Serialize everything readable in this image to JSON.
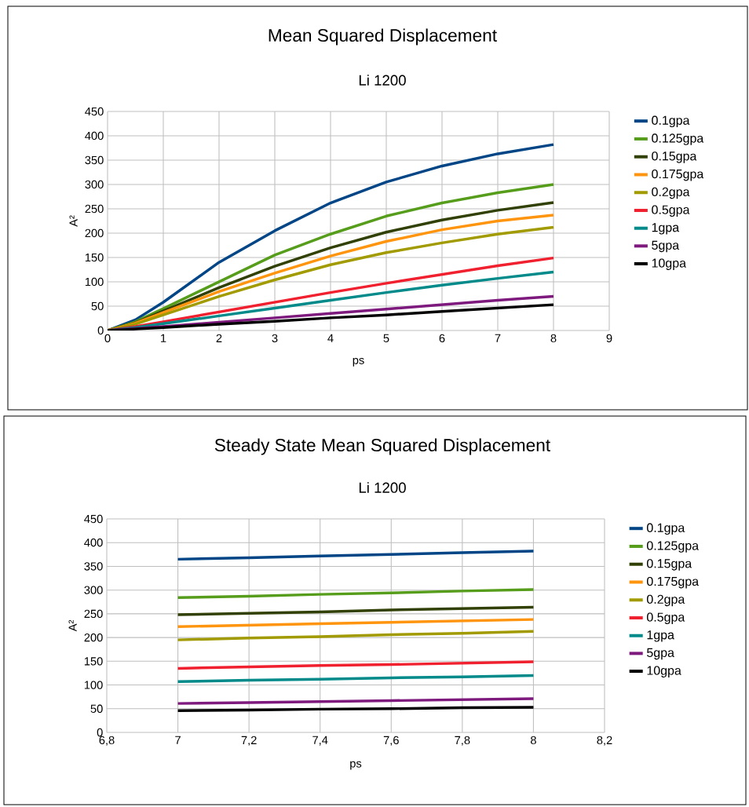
{
  "chart_data": [
    {
      "type": "line",
      "title": "Mean Squared Displacement",
      "subtitle": "Li 1200",
      "xlabel": "ps",
      "ylabel": "A²",
      "x": [
        0,
        0.5,
        1,
        2,
        3,
        4,
        5,
        6,
        7,
        8
      ],
      "xlim": [
        0,
        9
      ],
      "xticks": [
        0,
        1,
        2,
        3,
        4,
        5,
        6,
        7,
        8,
        9
      ],
      "ylim": [
        0,
        450
      ],
      "yticks": [
        0,
        50,
        100,
        150,
        200,
        250,
        300,
        350,
        400,
        450
      ],
      "grid": true,
      "legend": "right",
      "series": [
        {
          "name": "0.1gpa",
          "color": "#004586",
          "values": [
            0,
            22,
            58,
            140,
            205,
            262,
            305,
            338,
            363,
            382
          ]
        },
        {
          "name": "0.125gpa",
          "color": "#579d1c",
          "values": [
            0,
            18,
            45,
            100,
            155,
            198,
            235,
            262,
            283,
            300
          ]
        },
        {
          "name": "0.15gpa",
          "color": "#314004",
          "values": [
            0,
            16,
            40,
            88,
            132,
            170,
            202,
            227,
            247,
            263
          ]
        },
        {
          "name": "0.175gpa",
          "color": "#ff950e",
          "values": [
            0,
            15,
            37,
            80,
            118,
            153,
            183,
            207,
            225,
            237
          ]
        },
        {
          "name": "0.2gpa",
          "color": "#a29b00",
          "values": [
            0,
            13,
            32,
            70,
            104,
            135,
            160,
            180,
            198,
            212
          ]
        },
        {
          "name": "0.5gpa",
          "color": "#f0202f",
          "values": [
            0,
            8,
            18,
            38,
            58,
            78,
            97,
            115,
            133,
            149
          ]
        },
        {
          "name": "1gpa",
          "color": "#008a8a",
          "values": [
            0,
            6,
            14,
            30,
            46,
            62,
            78,
            93,
            107,
            120
          ]
        },
        {
          "name": "5gpa",
          "color": "#7e1a7e",
          "values": [
            0,
            4,
            8,
            17,
            26,
            35,
            44,
            53,
            62,
            70
          ]
        },
        {
          "name": "10gpa",
          "color": "#000000",
          "values": [
            0,
            3,
            6,
            13,
            19,
            26,
            32,
            39,
            46,
            53
          ]
        }
      ]
    },
    {
      "type": "line",
      "title": "Steady State Mean Squared Displacement",
      "subtitle": "Li 1200",
      "xlabel": "ps",
      "ylabel": "A²",
      "x": [
        7,
        7.2,
        7.4,
        7.6,
        7.8,
        8
      ],
      "xlim": [
        6.8,
        8.2
      ],
      "xticks": [
        {
          "value": 6.8,
          "label": "6,8"
        },
        7,
        {
          "value": 7.2,
          "label": "7,2"
        },
        {
          "value": 7.4,
          "label": "7,4"
        },
        {
          "value": 7.6,
          "label": "7,6"
        },
        {
          "value": 7.8,
          "label": "7,8"
        },
        8,
        {
          "value": 8.2,
          "label": "8,2"
        }
      ],
      "ylim": [
        0,
        450
      ],
      "yticks": [
        0,
        50,
        100,
        150,
        200,
        250,
        300,
        350,
        400,
        450
      ],
      "grid": true,
      "legend": "right",
      "series": [
        {
          "name": "0.1gpa",
          "color": "#004586",
          "values": [
            365,
            368,
            372,
            375,
            379,
            382
          ]
        },
        {
          "name": "0.125gpa",
          "color": "#579d1c",
          "values": [
            284,
            287,
            291,
            294,
            298,
            301
          ]
        },
        {
          "name": "0.15gpa",
          "color": "#314004",
          "values": [
            248,
            251,
            254,
            258,
            261,
            264
          ]
        },
        {
          "name": "0.175gpa",
          "color": "#ff950e",
          "values": [
            223,
            226,
            229,
            232,
            235,
            238
          ]
        },
        {
          "name": "0.2gpa",
          "color": "#a29b00",
          "values": [
            195,
            199,
            202,
            206,
            209,
            213
          ]
        },
        {
          "name": "0.5gpa",
          "color": "#f0202f",
          "values": [
            135,
            138,
            141,
            143,
            146,
            149
          ]
        },
        {
          "name": "1gpa",
          "color": "#008a8a",
          "values": [
            107,
            110,
            112,
            115,
            117,
            120
          ]
        },
        {
          "name": "5gpa",
          "color": "#7e1a7e",
          "values": [
            61,
            63,
            65,
            67,
            69,
            71
          ]
        },
        {
          "name": "10gpa",
          "color": "#000000",
          "values": [
            46,
            47,
            49,
            50,
            52,
            53
          ]
        }
      ]
    }
  ]
}
